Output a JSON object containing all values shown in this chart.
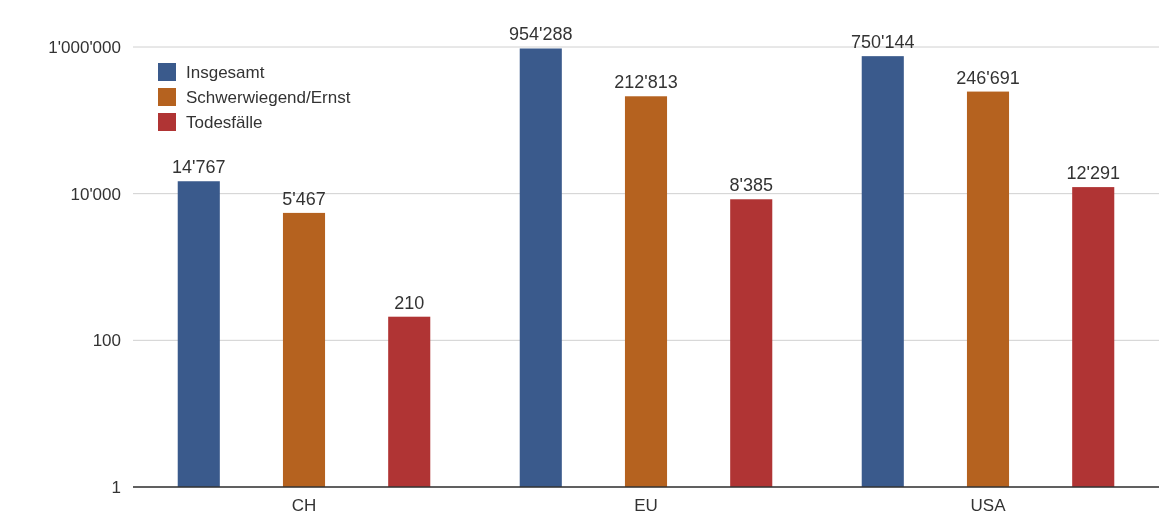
{
  "chart_data": {
    "type": "bar",
    "categories": [
      "CH",
      "EU",
      "USA"
    ],
    "series": [
      {
        "name": "Insgesamt",
        "color": "#3a5a8c",
        "values": [
          14767,
          954288,
          750144
        ],
        "value_labels": [
          "14'767",
          "954'288",
          "750'144"
        ]
      },
      {
        "name": "Schwerwiegend/Ernst",
        "color": "#b5621f",
        "values": [
          5467,
          212813,
          246691
        ],
        "value_labels": [
          "5'467",
          "212'813",
          "246'691"
        ]
      },
      {
        "name": "Todesfälle",
        "color": "#b03434",
        "values": [
          210,
          8385,
          12291
        ],
        "value_labels": [
          "210",
          "8'385",
          "12'291"
        ]
      }
    ],
    "log": "y",
    "ylim": [
      1,
      1000000
    ],
    "yticks": [
      1,
      100,
      {
        "value": 10000,
        "label": "10'000"
      },
      {
        "value": 1000000,
        "label": "1'000'000"
      }
    ],
    "grid": "y",
    "legend": "top left"
  }
}
